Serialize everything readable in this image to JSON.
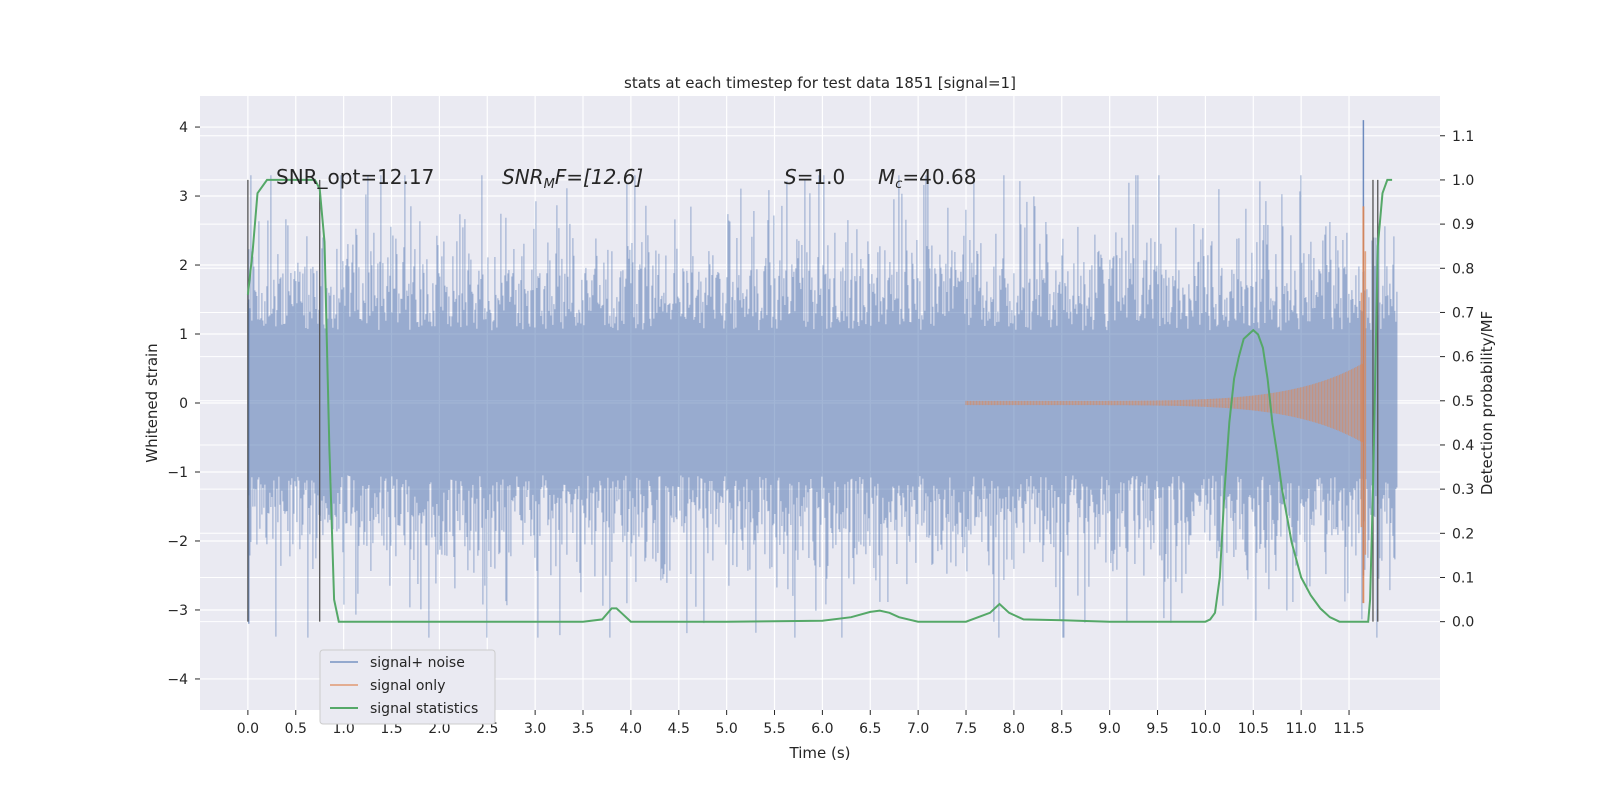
{
  "chart_data": {
    "type": "line",
    "title": "stats at each timestep for test data 1851 [signal=1]",
    "xlabel": "Time (s)",
    "ylabel": "Whitened strain",
    "y2label": "Detection probability/MF",
    "xlim": [
      -0.5,
      12.45
    ],
    "ylim": [
      -4.45,
      4.45
    ],
    "y2lim": [
      -0.2,
      1.19
    ],
    "x_ticks": [
      "0.0",
      "0.5",
      "1.0",
      "1.5",
      "2.0",
      "2.5",
      "3.0",
      "3.5",
      "4.0",
      "4.5",
      "5.0",
      "5.5",
      "6.0",
      "6.5",
      "7.0",
      "7.5",
      "8.0",
      "8.5",
      "9.0",
      "9.5",
      "10.0",
      "10.5",
      "11.0",
      "11.5"
    ],
    "y_ticks": [
      4,
      3,
      2,
      1,
      0,
      -1,
      -2,
      -3,
      -4
    ],
    "y_tick_labels": [
      "4",
      "3",
      "2",
      "1",
      "0",
      "−1",
      "−2",
      "−3",
      "−4"
    ],
    "y2_ticks": [
      "1.1",
      "1.0",
      "0.9",
      "0.8",
      "0.7",
      "0.6",
      "0.5",
      "0.4",
      "0.3",
      "0.2",
      "0.1",
      "0.0"
    ],
    "grid": true,
    "legend_position": "lower-left",
    "background": "#eaeaf2",
    "annotations": {
      "snr_opt": "SNR_opt=12.17",
      "snr_mf_main": "SNR",
      "snr_mf_sub": "M",
      "snr_mf_rest": "F=[12.6]",
      "s_sym": "S",
      "s_val": "=1.0",
      "mc_sym": "M",
      "mc_sub": "c",
      "mc_val": "=40.68"
    },
    "vertical_lines": [
      0.0,
      0.75,
      11.75,
      11.8
    ],
    "series": [
      {
        "name": "signal+ noise",
        "color": "#4c72b0",
        "opacity": 0.5,
        "x_range": [
          0.0,
          12.0
        ],
        "noise_std": 0.68,
        "tall_spike_x": 11.65,
        "tall_spike_value": 4.1
      },
      {
        "name": "signal only",
        "color": "#dd8452",
        "opacity": 0.6,
        "chirp_start": 7.5,
        "chirp_end": 11.65,
        "peak_max": 2.85,
        "peak_min": -2.9
      },
      {
        "name": "signal statistics",
        "color": "#55a868",
        "x": [
          0.0,
          0.05,
          0.1,
          0.2,
          0.3,
          0.4,
          0.5,
          0.6,
          0.7,
          0.75,
          0.8,
          0.85,
          0.9,
          0.95,
          1.0,
          1.5,
          2.0,
          2.5,
          3.0,
          3.5,
          3.7,
          3.8,
          3.85,
          3.9,
          4.0,
          4.1,
          5.0,
          6.0,
          6.3,
          6.5,
          6.6,
          6.7,
          6.8,
          7.0,
          7.5,
          7.75,
          7.85,
          7.95,
          8.1,
          8.5,
          9.0,
          9.5,
          10.0,
          10.05,
          10.1,
          10.15,
          10.2,
          10.25,
          10.3,
          10.35,
          10.4,
          10.45,
          10.5,
          10.55,
          10.6,
          10.65,
          10.7,
          10.75,
          10.8,
          10.9,
          11.0,
          11.1,
          11.2,
          11.3,
          11.4,
          11.5,
          11.6,
          11.7,
          11.72,
          11.75,
          11.8,
          11.85,
          11.9,
          11.95
        ],
        "values": [
          0.74,
          0.84,
          0.97,
          1.0,
          1.0,
          1.0,
          1.0,
          1.0,
          1.0,
          0.98,
          0.86,
          0.4,
          0.05,
          0.0,
          0.0,
          0.0,
          0.0,
          0.0,
          0.0,
          0.0,
          0.005,
          0.03,
          0.03,
          0.02,
          0.0,
          0.0,
          0.0,
          0.002,
          0.01,
          0.022,
          0.025,
          0.02,
          0.01,
          0.0,
          0.0,
          0.02,
          0.04,
          0.02,
          0.005,
          0.003,
          0.0,
          0.0,
          0.0,
          0.005,
          0.02,
          0.1,
          0.3,
          0.45,
          0.55,
          0.6,
          0.64,
          0.65,
          0.66,
          0.65,
          0.62,
          0.55,
          0.45,
          0.38,
          0.3,
          0.18,
          0.1,
          0.06,
          0.03,
          0.01,
          0.0,
          0.0,
          0.0,
          0.0,
          0.05,
          0.3,
          0.85,
          0.97,
          1.0,
          1.0
        ]
      }
    ]
  }
}
